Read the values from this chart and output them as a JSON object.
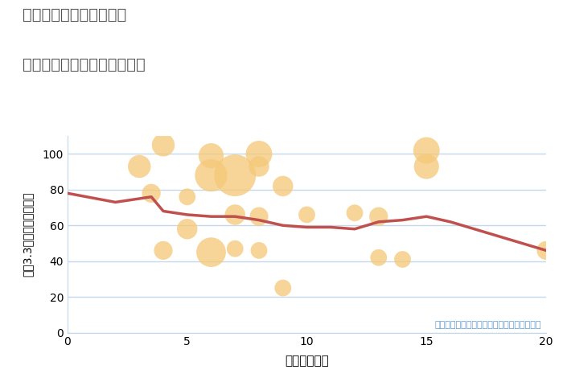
{
  "title_line1": "三重県四日市市滝川町の",
  "title_line2": "駅距離別中古マンション価格",
  "xlabel": "駅距離（分）",
  "ylabel": "坪（3.3㎡）単価（万円）",
  "xlim": [
    0,
    20
  ],
  "ylim": [
    0,
    110
  ],
  "yticks": [
    0,
    20,
    40,
    60,
    80,
    100
  ],
  "xticks": [
    0,
    5,
    10,
    15,
    20
  ],
  "bubble_color": "#F5C97A",
  "bubble_alpha": 0.78,
  "line_color": "#C0504D",
  "line_width": 2.5,
  "background_color": "#ffffff",
  "grid_color": "#c5d8ea",
  "annotation": "円の大きさは、取引のあった物件面積を示す",
  "annotation_color": "#5B9BD5",
  "scatter_x": [
    3,
    3.5,
    4,
    4,
    5,
    5,
    6,
    6,
    6,
    7,
    7,
    7,
    8,
    8,
    8,
    8,
    9,
    9,
    10,
    12,
    13,
    13,
    14,
    15,
    15,
    20
  ],
  "scatter_y": [
    93,
    78,
    105,
    46,
    58,
    76,
    99,
    88,
    45,
    88,
    66,
    47,
    100,
    93,
    65,
    46,
    82,
    25,
    66,
    67,
    42,
    65,
    41,
    93,
    102,
    46
  ],
  "scatter_size": [
    15,
    10,
    15,
    10,
    12,
    8,
    18,
    30,
    25,
    50,
    12,
    8,
    20,
    12,
    10,
    8,
    12,
    8,
    8,
    8,
    8,
    10,
    8,
    18,
    20,
    10
  ],
  "trend_x": [
    0,
    2,
    3,
    3.5,
    4,
    5,
    6,
    7,
    8,
    9,
    10,
    11,
    12,
    13,
    14,
    15,
    16,
    17,
    20
  ],
  "trend_y": [
    78,
    73,
    75,
    76,
    68,
    66,
    65,
    65,
    63,
    60,
    59,
    59,
    58,
    62,
    63,
    65,
    62,
    58,
    46
  ]
}
